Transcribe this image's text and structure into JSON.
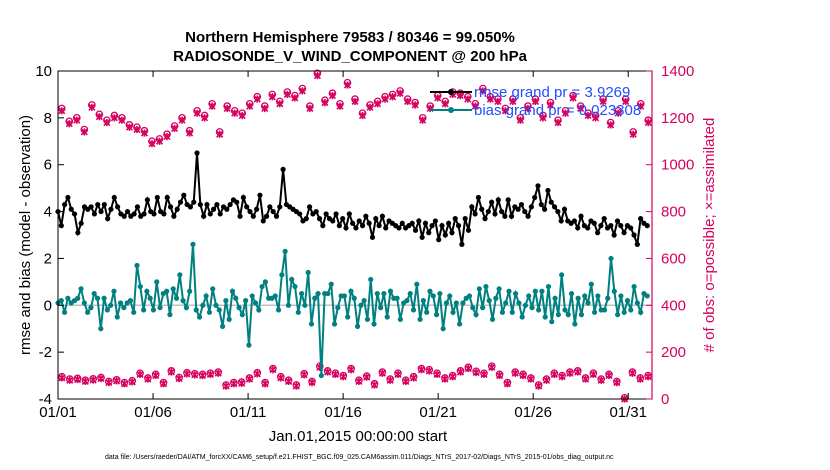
{
  "chart_data": {
    "type": "line",
    "title": "Northern Hemisphere 79583 / 80346 = 99.050%",
    "subtitle": "RADIOSONDE_V_WIND_COMPONENT @ 200 hPa",
    "xlabel": "Jan.01,2015 00:00:00 start",
    "ylabel_left": "rmse and bias (model - observation)",
    "ylabel_right": "# of obs: o=possible; ×=assimilated",
    "footer": "data file: /Users/raeder/DAI/ATM_forcXX/CAM6_setup/f.e21.FHIST_BGC.f09_025.CAM6assim.011/Diags_NTrS_2017-02/Diags_NTrS_2015-01/obs_diag_output.nc",
    "x_tick_labels": [
      "01/01",
      "01/06",
      "01/11",
      "01/16",
      "01/21",
      "01/26",
      "01/31"
    ],
    "x_tick_days": [
      0,
      5,
      10,
      15,
      20,
      25,
      30
    ],
    "xlim": [
      0,
      31.25
    ],
    "ylim_left": [
      -4,
      10
    ],
    "y_left_ticks": [
      -4,
      -2,
      0,
      2,
      4,
      6,
      8,
      10
    ],
    "ylim_right": [
      0,
      1400
    ],
    "y_right_ticks": [
      0,
      200,
      400,
      600,
      800,
      1000,
      1200,
      1400
    ],
    "colors": {
      "rmse": "#000000",
      "bias": "#008080",
      "counts": "#d6005f",
      "legend_text": "#1f4fff",
      "zero_line": "#c0c0c0"
    },
    "legend": [
      {
        "label": "rmse grand pr = 3.9269",
        "series": "rmse"
      },
      {
        "label": "bias grand pr = 0.023308",
        "series": "bias"
      }
    ],
    "series": [
      {
        "name": "rmse",
        "axis": "left",
        "values": [
          4.0,
          3.4,
          4.3,
          4.6,
          4.1,
          3.9,
          3.1,
          3.5,
          4.2,
          4.1,
          4.2,
          3.9,
          4.3,
          4.0,
          4.3,
          3.7,
          4.1,
          4.6,
          4.2,
          3.9,
          3.8,
          4.0,
          3.8,
          3.9,
          4.2,
          3.8,
          3.9,
          4.5,
          4.0,
          3.9,
          4.6,
          4.0,
          3.9,
          4.6,
          4.2,
          3.8,
          4.1,
          4.4,
          4.7,
          4.3,
          4.2,
          4.4,
          6.5,
          4.3,
          3.8,
          4.3,
          3.9,
          4.1,
          4.3,
          3.9,
          4.2,
          4.1,
          4.3,
          4.5,
          4.4,
          3.8,
          4.6,
          4.2,
          4.0,
          3.8,
          4.1,
          4.7,
          3.6,
          3.8,
          4.2,
          4.0,
          3.8,
          4.2,
          5.8,
          4.3,
          4.2,
          4.1,
          4.0,
          3.9,
          3.6,
          3.7,
          4.2,
          3.9,
          4.0,
          3.7,
          3.4,
          3.9,
          3.7,
          3.6,
          3.9,
          3.4,
          3.7,
          3.3,
          3.9,
          3.5,
          3.3,
          3.6,
          3.4,
          3.8,
          3.5,
          2.9,
          3.7,
          3.4,
          3.8,
          3.3,
          3.6,
          3.5,
          3.4,
          3.3,
          3.5,
          3.3,
          3.4,
          3.5,
          3.2,
          3.6,
          2.9,
          3.5,
          3.1,
          3.4,
          3.6,
          2.8,
          3.4,
          3.0,
          3.5,
          3.1,
          3.7,
          3.4,
          2.6,
          3.7,
          3.2,
          4.2,
          3.9,
          4.6,
          4.1,
          3.7,
          4.0,
          4.4,
          3.9,
          4.5,
          4.0,
          3.8,
          4.5,
          3.8,
          4.2,
          4.1,
          4.3,
          4.0,
          3.8,
          4.2,
          4.6,
          5.1,
          4.3,
          4.1,
          4.9,
          4.4,
          4.2,
          4.0,
          3.6,
          4.1,
          3.6,
          3.5,
          3.6,
          3.3,
          3.8,
          3.4,
          3.3,
          3.6,
          3.5,
          3.1,
          3.4,
          3.7,
          3.3,
          3.4,
          3.0,
          3.6,
          3.4,
          3.1,
          3.4,
          3.3,
          3.0,
          2.6,
          3.7,
          3.5,
          3.4
        ]
      },
      {
        "name": "bias",
        "axis": "left",
        "values": [
          0.1,
          0.2,
          -0.3,
          0.3,
          0.1,
          0.2,
          0.3,
          0.7,
          0.1,
          -0.3,
          -0.1,
          0.5,
          0.3,
          -1.0,
          0.3,
          -0.2,
          0.0,
          0.6,
          -0.5,
          0.1,
          -0.1,
          0.1,
          0.2,
          -0.3,
          1.7,
          0.8,
          -0.2,
          0.6,
          0.3,
          -0.2,
          1.0,
          -0.1,
          0.5,
          0.6,
          -0.4,
          0.7,
          0.3,
          1.3,
          0.2,
          -0.1,
          0.6,
          2.6,
          -0.2,
          -0.5,
          0.0,
          0.4,
          -0.3,
          0.7,
          0.0,
          -0.2,
          -0.9,
          0.2,
          -0.6,
          0.6,
          0.3,
          -0.1,
          -0.4,
          0.2,
          -1.7,
          0.4,
          0.1,
          -0.2,
          0.8,
          1.0,
          0.3,
          0.3,
          0.4,
          -0.2,
          1.3,
          2.3,
          0.0,
          1.1,
          0.8,
          -0.3,
          0.5,
          0.0,
          1.4,
          -0.8,
          0.3,
          0.5,
          -3.0,
          0.5,
          0.5,
          0.9,
          -0.8,
          -0.1,
          0.4,
          0.4,
          -0.5,
          0.6,
          0.3,
          -0.9,
          0.0,
          0.2,
          -0.6,
          1.1,
          -0.8,
          0.5,
          -0.1,
          0.5,
          -0.5,
          0.6,
          0.3,
          0.3,
          -0.6,
          0.1,
          0.2,
          0.5,
          -0.2,
          0.9,
          -0.6,
          0.2,
          -0.3,
          0.6,
          0.4,
          -0.4,
          0.5,
          -1.0,
          0.1,
          0.4,
          -0.3,
          0.1,
          -0.8,
          0.1,
          0.3,
          0.4,
          -0.1,
          -0.4,
          0.7,
          -0.1,
          0.8,
          0.2,
          -0.6,
          0.3,
          0.7,
          -0.3,
          0.1,
          0.6,
          -0.3,
          0.5,
          0.1,
          -0.5,
          0.0,
          0.4,
          -0.1,
          0.6,
          -0.2,
          0.6,
          -0.5,
          0.8,
          -0.7,
          0.3,
          -0.4,
          1.3,
          -0.2,
          -0.4,
          0.5,
          -0.8,
          0.3,
          -0.4,
          0.4,
          0.1,
          0.9,
          -0.3,
          0.4,
          -0.2,
          -0.2,
          0.3,
          2.0,
          0.6,
          -0.4,
          0.4,
          -0.3,
          0.2,
          -0.2,
          0.8,
          0.1,
          -0.3,
          0.5,
          0.4
        ]
      },
      {
        "name": "obs_possible",
        "axis": "right",
        "values": [
          1240,
          1185,
          1200,
          1150,
          1255,
          1215,
          1190,
          1210,
          1200,
          1170,
          1160,
          1145,
          1100,
          1110,
          1130,
          1165,
          1200,
          1145,
          1230,
          1210,
          1260,
          1140,
          1250,
          1230,
          1220,
          1260,
          1290,
          1250,
          1300,
          1270,
          1310,
          1295,
          1325,
          1250,
          1390,
          1275,
          1305,
          1260,
          1350,
          1280,
          1220,
          1255,
          1270,
          1290,
          1300,
          1315,
          1280,
          1265,
          1200,
          1250,
          1295,
          1270,
          1310,
          1305,
          1290,
          1260,
          1325,
          1290,
          1280,
          1240,
          1280,
          1200,
          1250,
          1280,
          1210,
          1265,
          1190,
          1230,
          1295,
          1250,
          1220,
          1210,
          1280,
          1180,
          1230,
          1280,
          1140,
          1260,
          1190
        ]
      },
      {
        "name": "obs_assimilated",
        "axis": "right",
        "values": [
          1230,
          1175,
          1190,
          1140,
          1245,
          1205,
          1180,
          1200,
          1190,
          1160,
          1150,
          1135,
          1090,
          1100,
          1120,
          1155,
          1190,
          1135,
          1220,
          1200,
          1250,
          1130,
          1240,
          1220,
          1210,
          1250,
          1280,
          1240,
          1290,
          1260,
          1300,
          1285,
          1315,
          1240,
          1380,
          1265,
          1295,
          1250,
          1340,
          1270,
          1210,
          1245,
          1260,
          1280,
          1290,
          1305,
          1270,
          1255,
          1190,
          1240,
          1285,
          1260,
          1300,
          1295,
          1280,
          1250,
          1315,
          1280,
          1270,
          1230,
          1270,
          1190,
          1240,
          1270,
          1200,
          1255,
          1180,
          1220,
          1285,
          1240,
          1210,
          1200,
          1270,
          1170,
          1220,
          1270,
          1130,
          1250,
          1180
        ]
      },
      {
        "name": "obs_low_possible",
        "axis": "right",
        "values": [
          95,
          85,
          88,
          80,
          86,
          92,
          75,
          82,
          70,
          78,
          110,
          90,
          105,
          70,
          120,
          92,
          112,
          108,
          105,
          110,
          115,
          60,
          70,
          72,
          90,
          112,
          70,
          130,
          95,
          80,
          60,
          108,
          75,
          140,
          120,
          110,
          100,
          130,
          80,
          98,
          65,
          115,
          85,
          110,
          80,
          95,
          130,
          125,
          110,
          90,
          100,
          120,
          135,
          118,
          110,
          140,
          105,
          70,
          115,
          105,
          90,
          60,
          85,
          110,
          100,
          115,
          120,
          90,
          110,
          85,
          105,
          75,
          5,
          115,
          90,
          100
        ]
      },
      {
        "name": "obs_low_assimilated",
        "axis": "right",
        "values": [
          90,
          80,
          83,
          75,
          81,
          87,
          70,
          77,
          65,
          73,
          105,
          85,
          100,
          65,
          115,
          87,
          107,
          103,
          100,
          105,
          110,
          55,
          65,
          67,
          85,
          107,
          65,
          125,
          90,
          75,
          55,
          103,
          70,
          135,
          115,
          105,
          95,
          125,
          75,
          93,
          60,
          110,
          80,
          105,
          75,
          90,
          125,
          120,
          105,
          85,
          95,
          115,
          130,
          113,
          105,
          135,
          100,
          65,
          110,
          100,
          85,
          55,
          80,
          105,
          95,
          110,
          115,
          85,
          105,
          80,
          100,
          70,
          0,
          110,
          85,
          95
        ]
      }
    ]
  }
}
